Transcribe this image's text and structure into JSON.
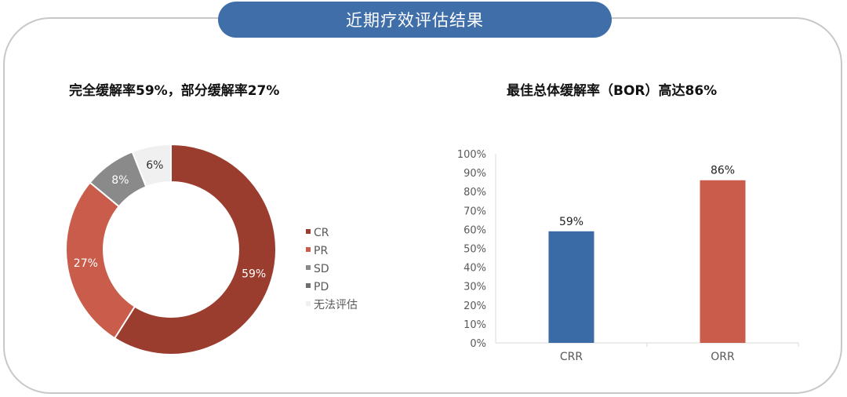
{
  "banner": {
    "title": "近期疗效评估结果"
  },
  "colors": {
    "banner_bg": "#3f6ea9",
    "cr": "#9b3d2e",
    "pr": "#c95c4a",
    "sd": "#8a8a8a",
    "pd": "#6e6e6e",
    "unevaluable": "#f0f0f0",
    "crr_bar": "#3a6ba6",
    "orr_bar": "#c95c4a"
  },
  "chart_data": [
    {
      "type": "pie",
      "variant": "donut",
      "title": "完全缓解率59%，部分缓解率27%",
      "categories": [
        "CR",
        "PR",
        "SD",
        "PD",
        "无法评估"
      ],
      "values": [
        59,
        27,
        8,
        0,
        6
      ],
      "data_labels": [
        "59%",
        "27%",
        "8%",
        "",
        "6%"
      ],
      "legend_position": "right"
    },
    {
      "type": "bar",
      "title": "最佳总体缓解率（BOR）高达86%",
      "categories": [
        "CRR",
        "ORR"
      ],
      "values": [
        59,
        86
      ],
      "data_labels": [
        "59%",
        "86%"
      ],
      "ylim": [
        0,
        100
      ],
      "yticks": [
        "0%",
        "10%",
        "20%",
        "30%",
        "40%",
        "50%",
        "60%",
        "70%",
        "80%",
        "90%",
        "100%"
      ],
      "xlabel": "",
      "ylabel": "",
      "grid": false
    }
  ]
}
